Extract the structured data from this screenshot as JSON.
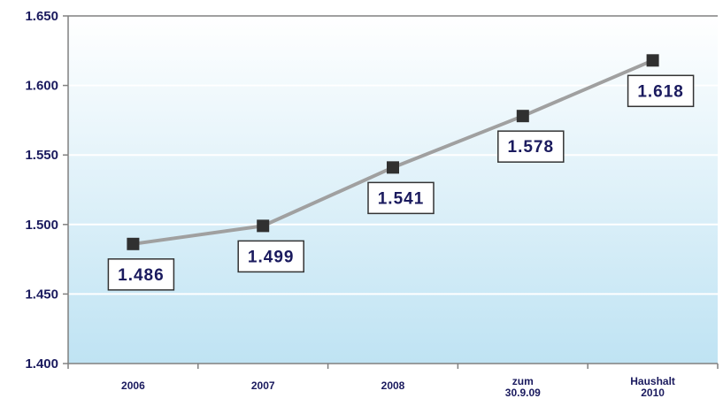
{
  "chart_data": {
    "type": "line",
    "categories": [
      [
        "2006"
      ],
      [
        "2007"
      ],
      [
        "2008"
      ],
      [
        "zum",
        "30.9.09"
      ],
      [
        "Haushalt",
        "2010"
      ]
    ],
    "values": [
      1486,
      1499,
      1541,
      1578,
      1618
    ],
    "data_labels": [
      "1.486",
      "1.499",
      "1.541",
      "1.578",
      "1.618"
    ],
    "yticks": [
      1400,
      1450,
      1500,
      1550,
      1600,
      1650
    ],
    "ytick_labels": [
      "1.400",
      "1.450",
      "1.500",
      "1.550",
      "1.600",
      "1.650"
    ],
    "ylim": [
      1400,
      1650
    ],
    "grid": true,
    "legend": "none",
    "colors": {
      "line": "#a0a0a0",
      "marker": "#303030",
      "text": "#1a1a5e",
      "gridline": "#ffffff",
      "bg_top": "#ffffff",
      "bg_bottom": "#bfe3f3",
      "axis": "#808080"
    }
  }
}
